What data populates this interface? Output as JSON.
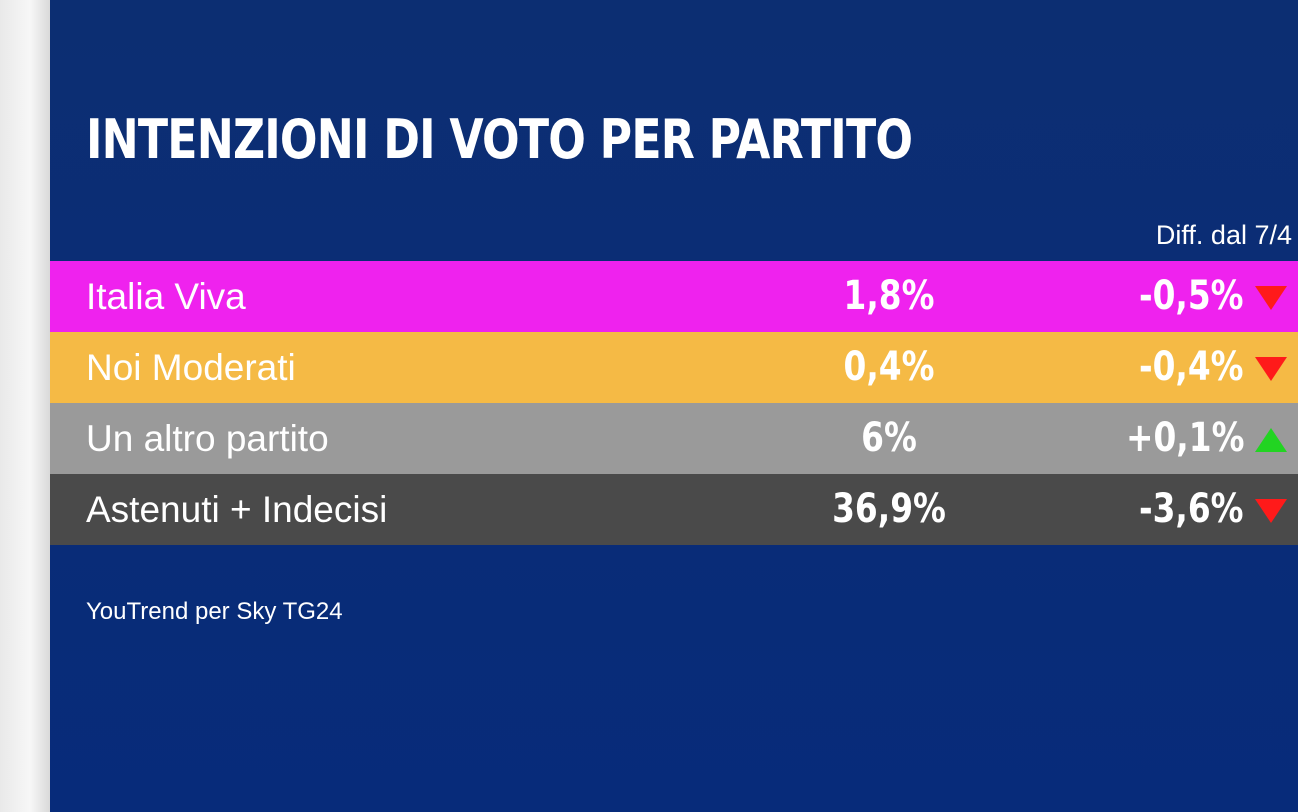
{
  "title": "INTENZIONI DI VOTO PER PARTITO",
  "diff_header": "Diff. dal 7/4",
  "source": "YouTrend per Sky TG24",
  "colors": {
    "background": "#0b2d75",
    "up": "#22d422",
    "down": "#ff1a1a"
  },
  "chart_data": {
    "type": "table",
    "title": "INTENZIONI DI VOTO PER PARTITO",
    "columns": [
      "",
      "",
      "Diff. dal 7/4"
    ],
    "rows": [
      {
        "party": "Italia Viva",
        "value": "1,8%",
        "diff": "-0,5%",
        "trend": "down",
        "color": "#ef22ee"
      },
      {
        "party": "Noi Moderati",
        "value": "0,4%",
        "diff": "-0,4%",
        "trend": "down",
        "color": "#f5ba45"
      },
      {
        "party": "Un altro partito",
        "value": "6%",
        "diff": "+0,1%",
        "trend": "up",
        "color": "#9a9a9a"
      },
      {
        "party": "Astenuti + Indecisi",
        "value": "36,9%",
        "diff": "-3,6%",
        "trend": "down",
        "color": "#4a4a4a"
      }
    ]
  }
}
